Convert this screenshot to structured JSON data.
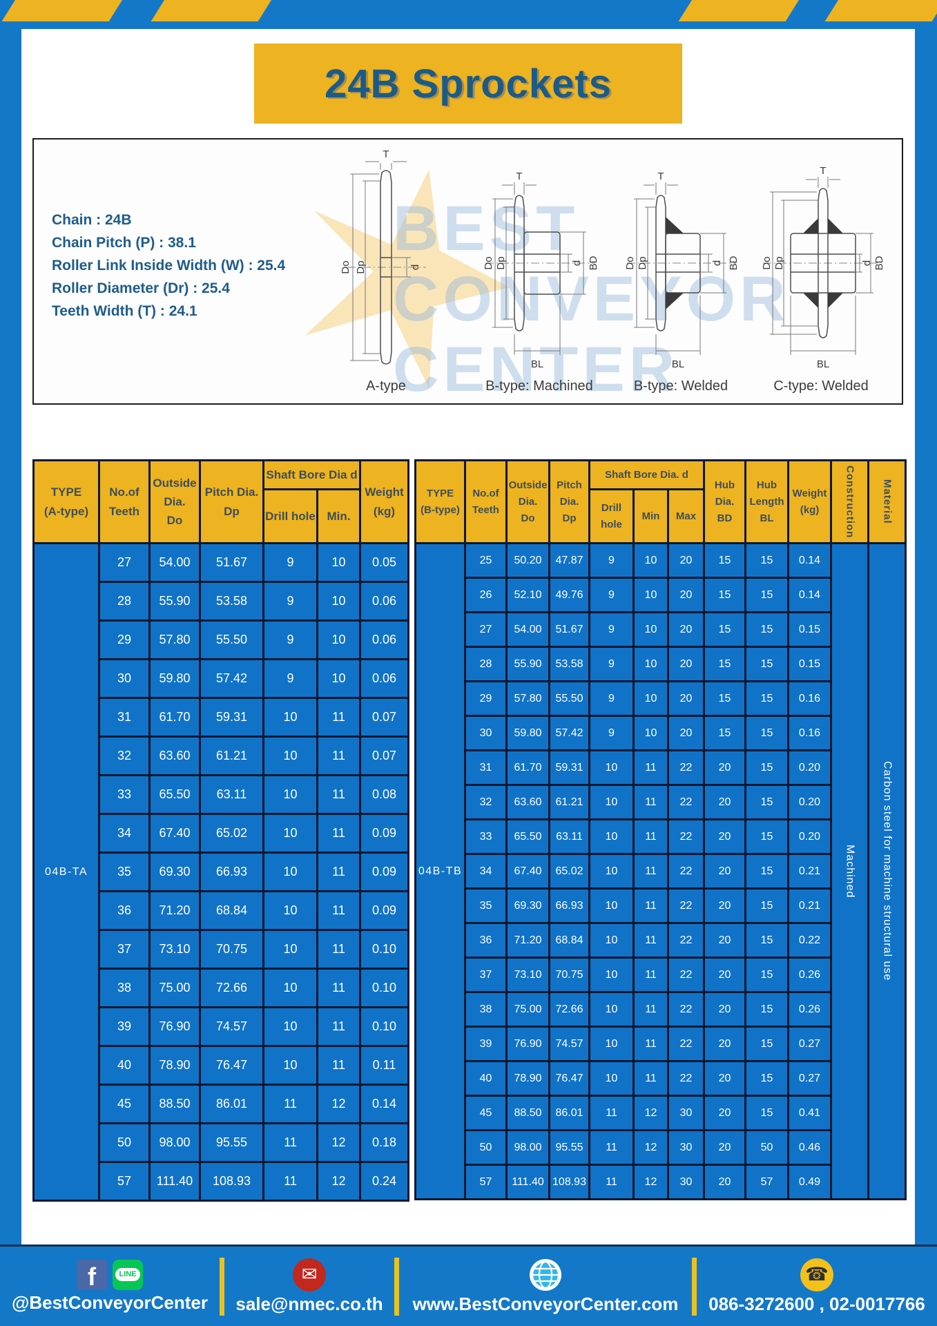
{
  "header": {
    "title": "24B Sprockets"
  },
  "specs": [
    "Chain  :  24B",
    "Chain Pitch (P)  :  38.1",
    "Roller Link Inside Width (W)  :  25.4",
    "Roller Diameter (Dr)  : 25.4",
    "Teeth Width (T)  :  24.1"
  ],
  "diagram": {
    "captions": [
      "A-type",
      "B-type: Machined",
      "B-type: Welded",
      "C-type: Welded"
    ],
    "dims": {
      "t": "T",
      "do": "Do",
      "dp": "Dp",
      "d": "d",
      "bd": "BD",
      "bl": "BL"
    },
    "watermark": [
      "BEST",
      "CONVEYOR",
      "CENTER"
    ]
  },
  "table_a": {
    "type_label": "04B-TA",
    "headers": {
      "type": "TYPE\n(A-type)",
      "teeth": "No.of\nTeeth",
      "outside": "Outside\nDia.\nDo",
      "pitch": "Pitch Dia.\nDp",
      "shaft_bore": "Shaft Bore Dia d",
      "drill_hole": "Drill hole",
      "min": "Min.",
      "weight": "Weight\n(kg)"
    },
    "rows": [
      [
        "27",
        "54.00",
        "51.67",
        "9",
        "10",
        "0.05"
      ],
      [
        "28",
        "55.90",
        "53.58",
        "9",
        "10",
        "0.06"
      ],
      [
        "29",
        "57.80",
        "55.50",
        "9",
        "10",
        "0.06"
      ],
      [
        "30",
        "59.80",
        "57.42",
        "9",
        "10",
        "0.06"
      ],
      [
        "31",
        "61.70",
        "59.31",
        "10",
        "11",
        "0.07"
      ],
      [
        "32",
        "63.60",
        "61.21",
        "10",
        "11",
        "0.07"
      ],
      [
        "33",
        "65.50",
        "63.11",
        "10",
        "11",
        "0.08"
      ],
      [
        "34",
        "67.40",
        "65.02",
        "10",
        "11",
        "0.09"
      ],
      [
        "35",
        "69.30",
        "66.93",
        "10",
        "11",
        "0.09"
      ],
      [
        "36",
        "71.20",
        "68.84",
        "10",
        "11",
        "0.09"
      ],
      [
        "37",
        "73.10",
        "70.75",
        "10",
        "11",
        "0.10"
      ],
      [
        "38",
        "75.00",
        "72.66",
        "10",
        "11",
        "0.10"
      ],
      [
        "39",
        "76.90",
        "74.57",
        "10",
        "11",
        "0.10"
      ],
      [
        "40",
        "78.90",
        "76.47",
        "10",
        "11",
        "0.11"
      ],
      [
        "45",
        "88.50",
        "86.01",
        "11",
        "12",
        "0.14"
      ],
      [
        "50",
        "98.00",
        "95.55",
        "11",
        "12",
        "0.18"
      ],
      [
        "57",
        "111.40",
        "108.93",
        "11",
        "12",
        "0.24"
      ]
    ]
  },
  "table_b": {
    "type_label": "04B-TB",
    "construction": "Machined",
    "material": "Carbon steel for machine structural use",
    "headers": {
      "type": "TYPE\n(B-type)",
      "teeth": "No.of\nTeeth",
      "outside": "Outside\nDia.\nDo",
      "pitch": "Pitch\nDia.\nDp",
      "shaft_bore": "Shaft Bore Dia.  d",
      "drill_hole": "Drill hole",
      "min": "Min",
      "max": "Max",
      "hub_dia": "Hub\nDia.\nBD",
      "hub_len": "Hub\nLength\nBL",
      "weight": "Weight\n(kg)",
      "construction": "Construction",
      "material": "Material"
    },
    "rows": [
      [
        "25",
        "50.20",
        "47.87",
        "9",
        "10",
        "20",
        "15",
        "15",
        "0.14"
      ],
      [
        "26",
        "52.10",
        "49.76",
        "9",
        "10",
        "20",
        "15",
        "15",
        "0.14"
      ],
      [
        "27",
        "54.00",
        "51.67",
        "9",
        "10",
        "20",
        "15",
        "15",
        "0.15"
      ],
      [
        "28",
        "55.90",
        "53.58",
        "9",
        "10",
        "20",
        "15",
        "15",
        "0.15"
      ],
      [
        "29",
        "57.80",
        "55.50",
        "9",
        "10",
        "20",
        "15",
        "15",
        "0.16"
      ],
      [
        "30",
        "59.80",
        "57.42",
        "9",
        "10",
        "20",
        "15",
        "15",
        "0.16"
      ],
      [
        "31",
        "61.70",
        "59.31",
        "10",
        "11",
        "22",
        "20",
        "15",
        "0.20"
      ],
      [
        "32",
        "63.60",
        "61.21",
        "10",
        "11",
        "22",
        "20",
        "15",
        "0.20"
      ],
      [
        "33",
        "65.50",
        "63.11",
        "10",
        "11",
        "22",
        "20",
        "15",
        "0.20"
      ],
      [
        "34",
        "67.40",
        "65.02",
        "10",
        "11",
        "22",
        "20",
        "15",
        "0.21"
      ],
      [
        "35",
        "69.30",
        "66.93",
        "10",
        "11",
        "22",
        "20",
        "15",
        "0.21"
      ],
      [
        "36",
        "71.20",
        "68.84",
        "10",
        "11",
        "22",
        "20",
        "15",
        "0.22"
      ],
      [
        "37",
        "73.10",
        "70.75",
        "10",
        "11",
        "22",
        "20",
        "15",
        "0.26"
      ],
      [
        "38",
        "75.00",
        "72.66",
        "10",
        "11",
        "22",
        "20",
        "15",
        "0.26"
      ],
      [
        "39",
        "76.90",
        "74.57",
        "10",
        "11",
        "22",
        "20",
        "15",
        "0.27"
      ],
      [
        "40",
        "78.90",
        "76.47",
        "10",
        "11",
        "22",
        "20",
        "15",
        "0.27"
      ],
      [
        "45",
        "88.50",
        "86.01",
        "11",
        "12",
        "30",
        "20",
        "15",
        "0.41"
      ],
      [
        "50",
        "98.00",
        "95.55",
        "11",
        "12",
        "30",
        "20",
        "50",
        "0.46"
      ],
      [
        "57",
        "111.40",
        "108.93",
        "11",
        "12",
        "30",
        "20",
        "57",
        "0.49"
      ]
    ]
  },
  "footer": {
    "social_handle": "@BestConveyorCenter",
    "email": "sale@nmec.co.th",
    "website": "www.BestConveyorCenter.com",
    "phones": "086-3272600 , 02-0017766",
    "facebook_glyph": "f",
    "line_glyph": "LINE",
    "mail_glyph": "✉",
    "phone_glyph": "☎"
  },
  "colors": {
    "frame_blue": "#1478c8",
    "accent_yellow": "#edb320",
    "table_body_blue": "#1073c8",
    "grid_dark": "#0d1830",
    "title_text_blue": "#1d5b87",
    "header_text": "#3e4e56",
    "line_green": "#06c755",
    "facebook_blue": "#4a67a8",
    "mail_red": "#c2281d",
    "globe_blue": "#35b6e9",
    "phone_yellow": "#f3c11a"
  }
}
